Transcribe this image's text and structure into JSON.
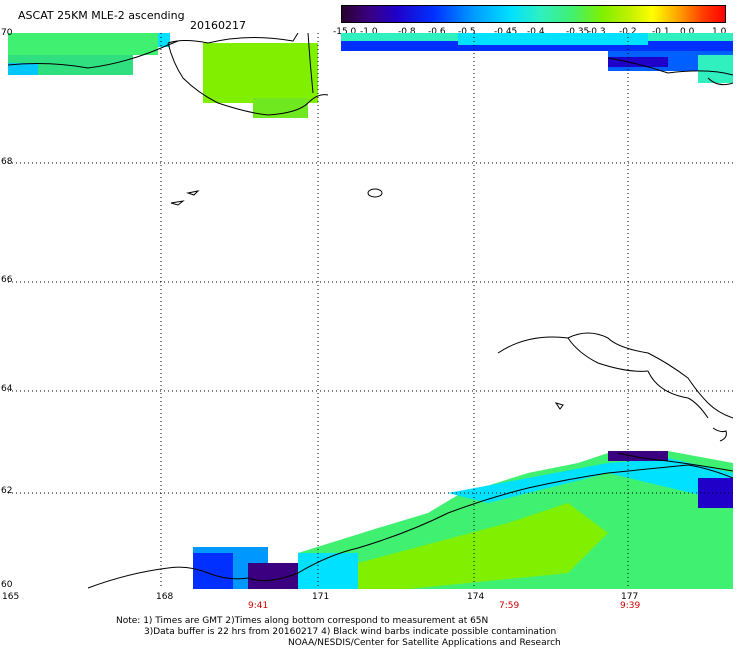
{
  "title": "ASCAT 25KM MLE-2 ascending",
  "date": "20160217",
  "colorbar": {
    "ticks": [
      "-15.0",
      "-1.0",
      "-0.8",
      "-0.6",
      "-0.5",
      "-0.45",
      "-0.4",
      "-0.35",
      "-0.3",
      "-0.2",
      "-0.1",
      "0.0",
      "1.0"
    ]
  },
  "axes": {
    "lat_labels": [
      "70",
      "68",
      "66",
      "64",
      "62",
      "60"
    ],
    "lon_labels": [
      "165",
      "168",
      "171",
      "174",
      "177"
    ]
  },
  "times": [
    "9:41",
    "7:59",
    "9:39"
  ],
  "notes": [
    "Note: 1) Times are GMT 2)Times along bottom correspond to measurement at 65N",
    "3)Data buffer is 22 hrs from 20160217 4) Black wind barbs indicate possible contamination",
    "NOAA/NESDIS/Center for Satellite Applications and Research"
  ],
  "colors": {
    "grid": "#000000",
    "time_label": "#d00000",
    "data_green": "#40f070",
    "data_lime": "#80f000",
    "data_blue": "#0030ff",
    "data_cyan": "#00e0ff",
    "data_violet": "#3a0080"
  }
}
